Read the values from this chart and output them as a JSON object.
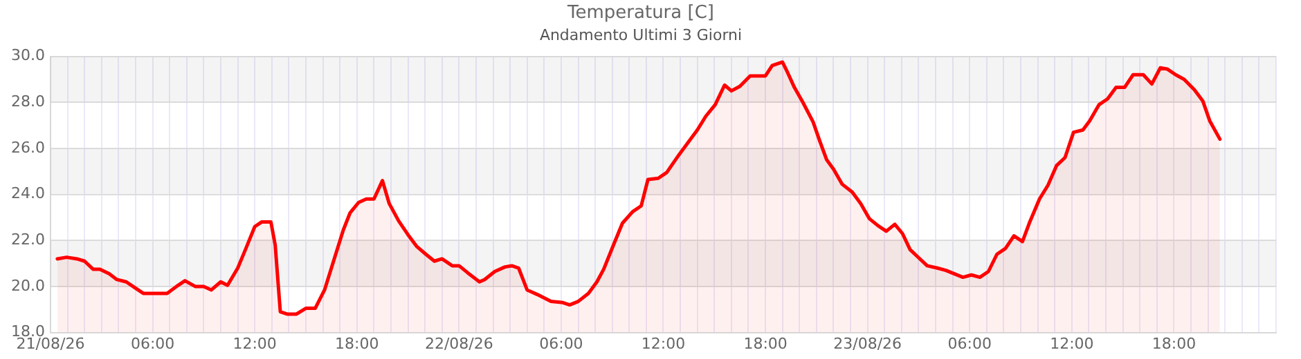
{
  "chart_data": {
    "type": "area",
    "title": "Temperatura [C]",
    "subtitle": "Andamento Ultimi 3 Giorni",
    "xlim": [
      "--08-21T00:00",
      "--08-24T00:00"
    ],
    "xticks": [
      {
        "value": "--08-21T00:00",
        "label": "21/08/26"
      },
      {
        "value": "--08-21T01:00",
        "label": null
      },
      {
        "value": "--08-21T02:00",
        "label": null
      },
      {
        "value": "--08-21T03:00",
        "label": null
      },
      {
        "value": "--08-21T04:00",
        "label": null
      },
      {
        "value": "--08-21T05:00",
        "label": null
      },
      {
        "value": "--08-21T06:00",
        "label": "06:00"
      },
      {
        "value": "--08-21T07:00",
        "label": null
      },
      {
        "value": "--08-21T08:00",
        "label": null
      },
      {
        "value": "--08-21T09:00",
        "label": null
      },
      {
        "value": "--08-21T10:00",
        "label": null
      },
      {
        "value": "--08-21T11:00",
        "label": null
      },
      {
        "value": "--08-21T12:00",
        "label": "12:00"
      },
      {
        "value": "--08-21T13:00",
        "label": null
      },
      {
        "value": "--08-21T14:00",
        "label": null
      },
      {
        "value": "--08-21T15:00",
        "label": null
      },
      {
        "value": "--08-21T16:00",
        "label": null
      },
      {
        "value": "--08-21T17:00",
        "label": null
      },
      {
        "value": "--08-21T18:00",
        "label": "18:00"
      },
      {
        "value": "--08-21T19:00",
        "label": null
      },
      {
        "value": "--08-21T20:00",
        "label": null
      },
      {
        "value": "--08-21T21:00",
        "label": null
      },
      {
        "value": "--08-21T22:00",
        "label": null
      },
      {
        "value": "--08-21T23:00",
        "label": null
      },
      {
        "value": "--08-22T00:00",
        "label": "22/08/26"
      },
      {
        "value": "--08-22T01:00",
        "label": null
      },
      {
        "value": "--08-22T02:00",
        "label": null
      },
      {
        "value": "--08-22T03:00",
        "label": null
      },
      {
        "value": "--08-22T04:00",
        "label": null
      },
      {
        "value": "--08-22T05:00",
        "label": null
      },
      {
        "value": "--08-22T06:00",
        "label": "06:00"
      },
      {
        "value": "--08-22T07:00",
        "label": null
      },
      {
        "value": "--08-22T08:00",
        "label": null
      },
      {
        "value": "--08-22T09:00",
        "label": null
      },
      {
        "value": "--08-22T10:00",
        "label": null
      },
      {
        "value": "--08-22T11:00",
        "label": null
      },
      {
        "value": "--08-22T12:00",
        "label": "12:00"
      },
      {
        "value": "--08-22T13:00",
        "label": null
      },
      {
        "value": "--08-22T14:00",
        "label": null
      },
      {
        "value": "--08-22T15:00",
        "label": null
      },
      {
        "value": "--08-22T16:00",
        "label": null
      },
      {
        "value": "--08-22T17:00",
        "label": null
      },
      {
        "value": "--08-22T18:00",
        "label": "18:00"
      },
      {
        "value": "--08-22T19:00",
        "label": null
      },
      {
        "value": "--08-22T20:00",
        "label": null
      },
      {
        "value": "--08-22T21:00",
        "label": null
      },
      {
        "value": "--08-22T22:00",
        "label": null
      },
      {
        "value": "--08-22T23:00",
        "label": null
      },
      {
        "value": "--08-23T00:00",
        "label": "23/08/26"
      },
      {
        "value": "--08-23T01:00",
        "label": null
      },
      {
        "value": "--08-23T02:00",
        "label": null
      },
      {
        "value": "--08-23T03:00",
        "label": null
      },
      {
        "value": "--08-23T04:00",
        "label": null
      },
      {
        "value": "--08-23T05:00",
        "label": null
      },
      {
        "value": "--08-23T06:00",
        "label": "06:00"
      },
      {
        "value": "--08-23T07:00",
        "label": null
      },
      {
        "value": "--08-23T08:00",
        "label": null
      },
      {
        "value": "--08-23T09:00",
        "label": null
      },
      {
        "value": "--08-23T10:00",
        "label": null
      },
      {
        "value": "--08-23T11:00",
        "label": null
      },
      {
        "value": "--08-23T12:00",
        "label": "12:00"
      },
      {
        "value": "--08-23T13:00",
        "label": null
      },
      {
        "value": "--08-23T14:00",
        "label": null
      },
      {
        "value": "--08-23T15:00",
        "label": null
      },
      {
        "value": "--08-23T16:00",
        "label": null
      },
      {
        "value": "--08-23T17:00",
        "label": null
      },
      {
        "value": "--08-23T18:00",
        "label": "18:00"
      },
      {
        "value": "--08-23T19:00",
        "label": null
      },
      {
        "value": "--08-23T20:00",
        "label": null
      },
      {
        "value": "--08-23T21:00",
        "label": null
      },
      {
        "value": "--08-23T22:00",
        "label": null
      },
      {
        "value": "--08-23T23:00",
        "label": null
      },
      {
        "value": "--08-24T00:00",
        "label": null
      }
    ],
    "ylim": [
      18,
      30
    ],
    "yticks": [
      {
        "value": 18,
        "label": "18.0"
      },
      {
        "value": 20,
        "label": "20.0"
      },
      {
        "value": 22,
        "label": "22.0"
      },
      {
        "value": 24,
        "label": "24.0"
      },
      {
        "value": 26,
        "label": "26.0"
      },
      {
        "value": 28,
        "label": "28.0"
      },
      {
        "value": 30,
        "label": "30.0"
      }
    ],
    "grid": true,
    "legend": false,
    "marker": "none",
    "line_style": "solid",
    "series": [
      {
        "color": "#ff0000",
        "x": [
          "--08-21T00:24",
          "--08-21T00:57",
          "--08-21T01:33",
          "--08-21T02:00",
          "--08-21T02:30",
          "--08-21T02:54",
          "--08-21T03:27",
          "--08-21T03:54",
          "--08-21T04:27",
          "--08-21T04:57",
          "--08-21T05:27",
          "--08-21T06:51",
          "--08-21T07:24",
          "--08-21T07:54",
          "--08-21T08:30",
          "--08-21T09:00",
          "--08-21T09:27",
          "--08-21T10:00",
          "--08-21T10:24",
          "--08-21T11:00",
          "--08-21T11:27",
          "--08-21T12:00",
          "--08-21T12:24",
          "--08-21T12:57",
          "--08-21T13:12",
          "--08-21T13:30",
          "--08-21T13:54",
          "--08-21T14:27",
          "--08-21T15:00",
          "--08-21T15:33",
          "--08-21T16:06",
          "--08-21T16:39",
          "--08-21T17:12",
          "--08-21T17:36",
          "--08-21T18:06",
          "--08-21T18:33",
          "--08-21T19:00",
          "--08-21T19:30",
          "--08-21T19:54",
          "--08-21T20:27",
          "--08-21T21:00",
          "--08-21T21:30",
          "--08-21T22:03",
          "--08-21T22:33",
          "--08-21T23:00",
          "--08-21T23:36",
          "--08-22T00:00",
          "--08-22T00:30",
          "--08-22T01:12",
          "--08-22T01:30",
          "--08-22T02:06",
          "--08-22T02:42",
          "--08-22T03:06",
          "--08-22T03:30",
          "--08-22T04:00",
          "--08-22T04:36",
          "--08-22T05:24",
          "--08-22T06:06",
          "--08-22T06:30",
          "--08-22T07:00",
          "--08-22T07:36",
          "--08-22T08:06",
          "--08-22T08:30",
          "--08-22T09:06",
          "--08-22T09:36",
          "--08-22T10:12",
          "--08-22T10:42",
          "--08-22T11:06",
          "--08-22T11:42",
          "--08-22T12:12",
          "--08-22T12:54",
          "--08-22T13:24",
          "--08-22T14:00",
          "--08-22T14:30",
          "--08-22T15:03",
          "--08-22T15:36",
          "--08-22T16:00",
          "--08-22T16:30",
          "--08-22T17:06",
          "--08-22T18:00",
          "--08-22T18:24",
          "--08-22T19:00",
          "--08-22T19:18",
          "--08-22T19:42",
          "--08-22T20:12",
          "--08-22T20:48",
          "--08-22T21:12",
          "--08-22T21:36",
          "--08-22T22:00",
          "--08-22T22:30",
          "--08-22T23:06",
          "--08-22T23:36",
          "--08-23T00:06",
          "--08-23T00:36",
          "--08-23T01:06",
          "--08-23T01:36",
          "--08-23T02:03",
          "--08-23T02:30",
          "--08-23T03:00",
          "--08-23T03:30",
          "--08-23T04:06",
          "--08-23T04:36",
          "--08-23T05:06",
          "--08-23T05:36",
          "--08-23T06:06",
          "--08-23T06:36",
          "--08-23T07:06",
          "--08-23T07:36",
          "--08-23T08:06",
          "--08-23T08:36",
          "--08-23T09:06",
          "--08-23T09:30",
          "--08-23T10:06",
          "--08-23T10:36",
          "--08-23T11:06",
          "--08-23T11:36",
          "--08-23T12:06",
          "--08-23T12:39",
          "--08-23T13:03",
          "--08-23T13:36",
          "--08-23T14:06",
          "--08-23T14:36",
          "--08-23T15:06",
          "--08-23T15:36",
          "--08-23T16:12",
          "--08-23T16:42",
          "--08-23T17:12",
          "--08-23T17:36",
          "--08-23T18:06",
          "--08-23T18:36",
          "--08-23T19:12",
          "--08-23T19:42",
          "--08-23T20:06",
          "--08-23T20:42"
        ],
        "values": [
          21.2,
          21.27,
          21.2,
          21.1,
          20.75,
          20.75,
          20.55,
          20.3,
          20.2,
          19.95,
          19.7,
          19.7,
          20.0,
          20.25,
          20.0,
          20.0,
          19.85,
          20.2,
          20.05,
          20.8,
          21.6,
          22.6,
          22.8,
          22.8,
          21.8,
          18.9,
          18.8,
          18.8,
          19.05,
          19.05,
          19.85,
          21.15,
          22.45,
          23.2,
          23.65,
          23.8,
          23.8,
          24.6,
          23.6,
          22.85,
          22.25,
          21.75,
          21.4,
          21.1,
          21.2,
          20.9,
          20.9,
          20.6,
          20.2,
          20.3,
          20.65,
          20.85,
          20.9,
          20.8,
          19.85,
          19.65,
          19.35,
          19.3,
          19.2,
          19.35,
          19.7,
          20.2,
          20.75,
          21.85,
          22.75,
          23.25,
          23.5,
          24.65,
          24.7,
          24.95,
          25.7,
          26.2,
          26.8,
          27.4,
          27.9,
          28.75,
          28.5,
          28.7,
          29.15,
          29.15,
          29.6,
          29.75,
          29.3,
          28.65,
          28.0,
          27.15,
          26.3,
          25.5,
          25.1,
          24.45,
          24.1,
          23.6,
          22.95,
          22.65,
          22.4,
          22.7,
          22.3,
          21.6,
          21.25,
          20.9,
          20.8,
          20.7,
          20.55,
          20.4,
          20.5,
          20.4,
          20.65,
          21.4,
          21.65,
          22.2,
          21.95,
          22.75,
          23.8,
          24.4,
          25.25,
          25.6,
          26.7,
          26.8,
          27.2,
          27.9,
          28.15,
          28.65,
          28.65,
          29.2,
          29.2,
          28.8,
          29.5,
          29.45,
          29.2,
          29.0,
          28.55,
          28.05,
          27.2,
          26.4
        ]
      }
    ]
  }
}
